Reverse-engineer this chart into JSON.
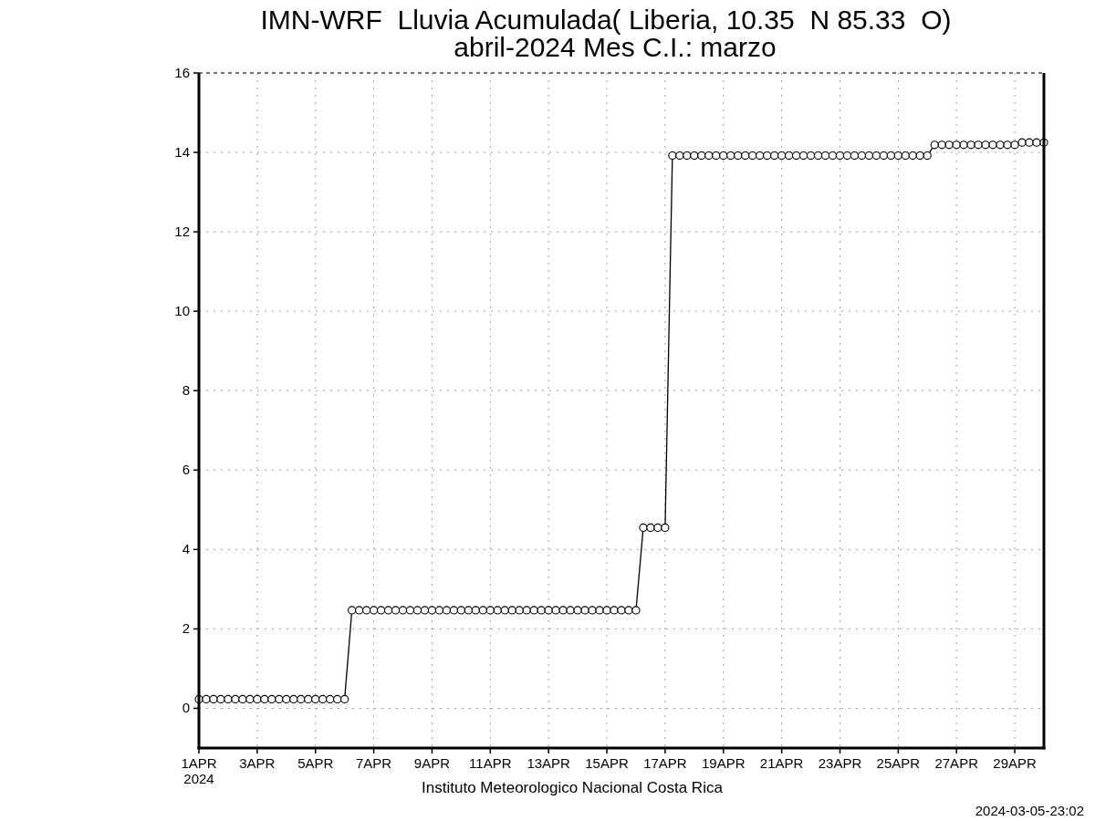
{
  "chart_data": {
    "type": "line",
    "title": "IMN-WRF  Lluvia Acumulada( Liberia, 10.35  N 85.33  O)",
    "subtitle": "abril-2024 Mes C.I.: marzo",
    "annotations": [
      "Instituto Meteorologico Nacional Costa Rica",
      "2024-03-05-23:02"
    ],
    "x": [
      "2024-04-01T00:00",
      "2024-04-01T06:00",
      "2024-04-01T12:00",
      "2024-04-01T18:00",
      "2024-04-02T00:00",
      "2024-04-02T06:00",
      "2024-04-02T12:00",
      "2024-04-02T18:00",
      "2024-04-03T00:00",
      "2024-04-03T06:00",
      "2024-04-03T12:00",
      "2024-04-03T18:00",
      "2024-04-04T00:00",
      "2024-04-04T06:00",
      "2024-04-04T12:00",
      "2024-04-04T18:00",
      "2024-04-05T00:00",
      "2024-04-05T06:00",
      "2024-04-05T12:00",
      "2024-04-05T18:00",
      "2024-04-06T00:00",
      "2024-04-06T06:00",
      "2024-04-06T12:00",
      "2024-04-06T18:00",
      "2024-04-07T00:00",
      "2024-04-07T06:00",
      "2024-04-07T12:00",
      "2024-04-07T18:00",
      "2024-04-08T00:00",
      "2024-04-08T06:00",
      "2024-04-08T12:00",
      "2024-04-08T18:00",
      "2024-04-09T00:00",
      "2024-04-09T06:00",
      "2024-04-09T12:00",
      "2024-04-09T18:00",
      "2024-04-10T00:00",
      "2024-04-10T06:00",
      "2024-04-10T12:00",
      "2024-04-10T18:00",
      "2024-04-11T00:00",
      "2024-04-11T06:00",
      "2024-04-11T12:00",
      "2024-04-11T18:00",
      "2024-04-12T00:00",
      "2024-04-12T06:00",
      "2024-04-12T12:00",
      "2024-04-12T18:00",
      "2024-04-13T00:00",
      "2024-04-13T06:00",
      "2024-04-13T12:00",
      "2024-04-13T18:00",
      "2024-04-14T00:00",
      "2024-04-14T06:00",
      "2024-04-14T12:00",
      "2024-04-14T18:00",
      "2024-04-15T00:00",
      "2024-04-15T06:00",
      "2024-04-15T12:00",
      "2024-04-15T18:00",
      "2024-04-16T00:00",
      "2024-04-16T06:00",
      "2024-04-16T12:00",
      "2024-04-16T18:00",
      "2024-04-17T00:00",
      "2024-04-17T06:00",
      "2024-04-17T12:00",
      "2024-04-17T18:00",
      "2024-04-18T00:00",
      "2024-04-18T06:00",
      "2024-04-18T12:00",
      "2024-04-18T18:00",
      "2024-04-19T00:00",
      "2024-04-19T06:00",
      "2024-04-19T12:00",
      "2024-04-19T18:00",
      "2024-04-20T00:00",
      "2024-04-20T06:00",
      "2024-04-20T12:00",
      "2024-04-20T18:00",
      "2024-04-21T00:00",
      "2024-04-21T06:00",
      "2024-04-21T12:00",
      "2024-04-21T18:00",
      "2024-04-22T00:00",
      "2024-04-22T06:00",
      "2024-04-22T12:00",
      "2024-04-22T18:00",
      "2024-04-23T00:00",
      "2024-04-23T06:00",
      "2024-04-23T12:00",
      "2024-04-23T18:00",
      "2024-04-24T00:00",
      "2024-04-24T06:00",
      "2024-04-24T12:00",
      "2024-04-24T18:00",
      "2024-04-25T00:00",
      "2024-04-25T06:00",
      "2024-04-25T12:00",
      "2024-04-25T18:00",
      "2024-04-26T00:00",
      "2024-04-26T06:00",
      "2024-04-26T12:00",
      "2024-04-26T18:00",
      "2024-04-27T00:00",
      "2024-04-27T06:00",
      "2024-04-27T12:00",
      "2024-04-27T18:00",
      "2024-04-28T00:00",
      "2024-04-28T06:00",
      "2024-04-28T12:00",
      "2024-04-28T18:00",
      "2024-04-29T00:00",
      "2024-04-29T06:00",
      "2024-04-29T12:00",
      "2024-04-29T18:00",
      "2024-04-30T00:00"
    ],
    "values": [
      0.23,
      0.23,
      0.23,
      0.23,
      0.23,
      0.23,
      0.23,
      0.23,
      0.23,
      0.23,
      0.23,
      0.23,
      0.23,
      0.23,
      0.23,
      0.23,
      0.23,
      0.23,
      0.23,
      0.23,
      0.23,
      2.47,
      2.47,
      2.47,
      2.47,
      2.47,
      2.47,
      2.47,
      2.47,
      2.47,
      2.47,
      2.47,
      2.47,
      2.47,
      2.47,
      2.47,
      2.47,
      2.47,
      2.47,
      2.47,
      2.47,
      2.47,
      2.47,
      2.47,
      2.47,
      2.47,
      2.47,
      2.47,
      2.47,
      2.47,
      2.47,
      2.47,
      2.47,
      2.47,
      2.47,
      2.47,
      2.47,
      2.47,
      2.47,
      2.47,
      2.47,
      4.55,
      4.55,
      4.55,
      4.55,
      13.92,
      13.92,
      13.92,
      13.92,
      13.92,
      13.92,
      13.92,
      13.92,
      13.92,
      13.92,
      13.92,
      13.92,
      13.92,
      13.92,
      13.92,
      13.92,
      13.92,
      13.92,
      13.92,
      13.92,
      13.92,
      13.92,
      13.92,
      13.92,
      13.92,
      13.92,
      13.92,
      13.92,
      13.92,
      13.92,
      13.92,
      13.92,
      13.92,
      13.92,
      13.92,
      13.92,
      14.19,
      14.19,
      14.19,
      14.19,
      14.19,
      14.19,
      14.19,
      14.19,
      14.19,
      14.19,
      14.19,
      14.19,
      14.25,
      14.25,
      14.25,
      14.25
    ],
    "color": "#000000",
    "marker": "circle",
    "line_style": "solid",
    "grid": true,
    "xlim": [
      "2024-04-01T00:00",
      "2024-04-30T00:00"
    ],
    "xticks": [
      {
        "value": "2024-04-01",
        "label": "1APR\n2024"
      },
      {
        "value": "2024-04-03",
        "label": "3APR"
      },
      {
        "value": "2024-04-05",
        "label": "5APR"
      },
      {
        "value": "2024-04-07",
        "label": "7APR"
      },
      {
        "value": "2024-04-09",
        "label": "9APR"
      },
      {
        "value": "2024-04-11",
        "label": "11APR"
      },
      {
        "value": "2024-04-13",
        "label": "13APR"
      },
      {
        "value": "2024-04-15",
        "label": "15APR"
      },
      {
        "value": "2024-04-17",
        "label": "17APR"
      },
      {
        "value": "2024-04-19",
        "label": "19APR"
      },
      {
        "value": "2024-04-21",
        "label": "21APR"
      },
      {
        "value": "2024-04-23",
        "label": "23APR"
      },
      {
        "value": "2024-04-25",
        "label": "25APR"
      },
      {
        "value": "2024-04-27",
        "label": "27APR"
      },
      {
        "value": "2024-04-29",
        "label": "29APR"
      }
    ],
    "ylim": [
      -1,
      16
    ],
    "yticks": [
      0,
      2,
      4,
      6,
      8,
      10,
      12,
      14,
      16
    ]
  }
}
